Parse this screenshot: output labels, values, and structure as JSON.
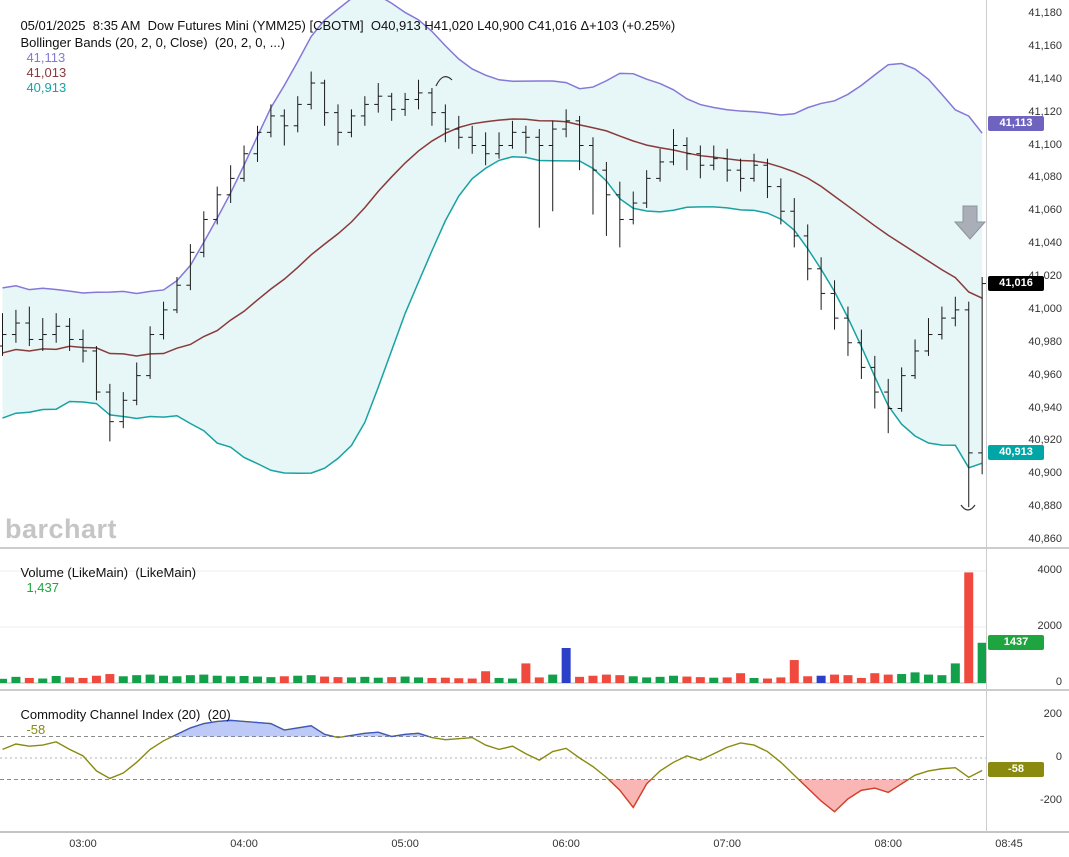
{
  "title": "Dow Futures Mini (YMM25) [CBOTM]",
  "header": {
    "line1": "05/01/2025  8:35 AM  Dow Futures Mini (YMM25) [CBOTM]  O40,913 H41,020 L40,900 C41,016 Δ+103 (+0.25%)",
    "bollinger_label": "Bollinger Bands (20, 2, 0, Close)  (20, 2, 0, ...)",
    "bollinger_upper": "41,113",
    "bollinger_middle": "41,013",
    "bollinger_lower": "40,913"
  },
  "volume_pane": {
    "label": "Volume (LikeMain)  (LikeMain)",
    "value": "1,437"
  },
  "cci_pane": {
    "label": "Commodity Channel Index (20)  (20)",
    "value": "-58"
  },
  "watermark": "barchart",
  "badges": {
    "bb_upper": "41,113",
    "last_price": "41,016",
    "bb_lower": "40,913",
    "volume": "1437",
    "cci": "-58"
  },
  "axes": {
    "price_ticks": [
      "41,180",
      "41,160",
      "41,140",
      "41,120",
      "41,100",
      "41,080",
      "41,060",
      "41,040",
      "41,020",
      "41,000",
      "40,980",
      "40,960",
      "40,940",
      "40,920",
      "40,900",
      "40,880",
      "40,860"
    ],
    "volume_ticks": [
      "4000",
      "2000",
      "0"
    ],
    "cci_ticks": [
      "200",
      "0",
      "-200"
    ],
    "time_ticks": [
      "03:00",
      "04:00",
      "05:00",
      "06:00",
      "07:00",
      "08:00",
      "08:45"
    ]
  },
  "colors": {
    "background": "#ffffff",
    "bar": "#1a1a1a",
    "bb_upper": "#8478d8",
    "bb_middle": "#8a3a3a",
    "bb_lower": "#18a2a2",
    "bb_fill": "rgba(24,162,162,0.10)",
    "volume_up": "#12a04a",
    "volume_down": "#f04a3e",
    "volume_special": "#2b3fc8",
    "cci_line": "#8a8a10",
    "cci_fill_high": "rgba(90,120,235,0.40)",
    "cci_fill_low": "rgba(245,90,90,0.45)",
    "cci_edge_high": "#3a55d0",
    "cci_edge_low": "#e03535",
    "badge_upper_bg": "#6f63c0",
    "badge_last_bg": "#000000",
    "badge_lower_bg": "#00a5a5",
    "badge_volume_bg": "#1fa53f",
    "badge_cci_bg": "#8a8a10",
    "watermark": "#c5c5c5",
    "annotation_arrow": "#a9aeb7"
  },
  "chart_data": {
    "type": "ohlc",
    "symbol": "YMM25",
    "exchange": "CBOTM",
    "interval_minutes": 5,
    "times": [
      "02:30",
      "02:35",
      "02:40",
      "02:45",
      "02:50",
      "02:55",
      "03:00",
      "03:05",
      "03:10",
      "03:15",
      "03:20",
      "03:25",
      "03:30",
      "03:35",
      "03:40",
      "03:45",
      "03:50",
      "03:55",
      "04:00",
      "04:05",
      "04:10",
      "04:15",
      "04:20",
      "04:25",
      "04:30",
      "04:35",
      "04:40",
      "04:45",
      "04:50",
      "04:55",
      "05:00",
      "05:05",
      "05:10",
      "05:15",
      "05:20",
      "05:25",
      "05:30",
      "05:35",
      "05:40",
      "05:45",
      "05:50",
      "05:55",
      "06:00",
      "06:05",
      "06:10",
      "06:15",
      "06:20",
      "06:25",
      "06:30",
      "06:35",
      "06:40",
      "06:45",
      "06:50",
      "06:55",
      "07:00",
      "07:05",
      "07:10",
      "07:15",
      "07:20",
      "07:25",
      "07:30",
      "07:35",
      "07:40",
      "07:45",
      "07:50",
      "07:55",
      "08:00",
      "08:05",
      "08:10",
      "08:15",
      "08:20",
      "08:25",
      "08:30",
      "08:35"
    ],
    "ohlc": [
      [
        40978,
        40998,
        40972,
        40985
      ],
      [
        40985,
        41000,
        40980,
        40992
      ],
      [
        40992,
        41002,
        40978,
        40982
      ],
      [
        40982,
        40995,
        40975,
        40985
      ],
      [
        40985,
        40998,
        40980,
        40990
      ],
      [
        40990,
        40995,
        40975,
        40982
      ],
      [
        40982,
        40988,
        40968,
        40975
      ],
      [
        40975,
        40978,
        40945,
        40950
      ],
      [
        40950,
        40955,
        40920,
        40932
      ],
      [
        40932,
        40950,
        40928,
        40945
      ],
      [
        40945,
        40968,
        40942,
        40960
      ],
      [
        40960,
        40990,
        40958,
        40985
      ],
      [
        40985,
        41005,
        40982,
        41000
      ],
      [
        41000,
        41020,
        40998,
        41015
      ],
      [
        41015,
        41040,
        41012,
        41035
      ],
      [
        41035,
        41060,
        41032,
        41055
      ],
      [
        41055,
        41075,
        41052,
        41070
      ],
      [
        41070,
        41088,
        41065,
        41080
      ],
      [
        41080,
        41100,
        41078,
        41095
      ],
      [
        41095,
        41112,
        41090,
        41108
      ],
      [
        41108,
        41125,
        41105,
        41118
      ],
      [
        41118,
        41122,
        41100,
        41112
      ],
      [
        41112,
        41130,
        41108,
        41125
      ],
      [
        41125,
        41145,
        41122,
        41138
      ],
      [
        41138,
        41140,
        41112,
        41120
      ],
      [
        41120,
        41125,
        41100,
        41108
      ],
      [
        41108,
        41122,
        41105,
        41118
      ],
      [
        41118,
        41130,
        41112,
        41125
      ],
      [
        41125,
        41138,
        41120,
        41130
      ],
      [
        41130,
        41132,
        41115,
        41122
      ],
      [
        41122,
        41132,
        41118,
        41128
      ],
      [
        41128,
        41140,
        41122,
        41132
      ],
      [
        41132,
        41135,
        41112,
        41120
      ],
      [
        41120,
        41125,
        41102,
        41110
      ],
      [
        41110,
        41118,
        41098,
        41105
      ],
      [
        41105,
        41112,
        41095,
        41100
      ],
      [
        41100,
        41108,
        41088,
        41095
      ],
      [
        41095,
        41108,
        41092,
        41100
      ],
      [
        41100,
        41115,
        41098,
        41108
      ],
      [
        41108,
        41112,
        41095,
        41105
      ],
      [
        41105,
        41110,
        41050,
        41100
      ],
      [
        41100,
        41115,
        41060,
        41110
      ],
      [
        41110,
        41122,
        41105,
        41115
      ],
      [
        41115,
        41118,
        41085,
        41100
      ],
      [
        41100,
        41105,
        41058,
        41085
      ],
      [
        41085,
        41090,
        41045,
        41070
      ],
      [
        41070,
        41078,
        41038,
        41055
      ],
      [
        41055,
        41072,
        41052,
        41065
      ],
      [
        41065,
        41085,
        41062,
        41080
      ],
      [
        41080,
        41098,
        41078,
        41090
      ],
      [
        41090,
        41110,
        41088,
        41100
      ],
      [
        41100,
        41105,
        41085,
        41095
      ],
      [
        41095,
        41100,
        41080,
        41088
      ],
      [
        41088,
        41100,
        41085,
        41092
      ],
      [
        41092,
        41098,
        41078,
        41085
      ],
      [
        41085,
        41092,
        41072,
        41080
      ],
      [
        41080,
        41095,
        41078,
        41088
      ],
      [
        41088,
        41092,
        41068,
        41075
      ],
      [
        41075,
        41080,
        41052,
        41060
      ],
      [
        41060,
        41068,
        41038,
        41045
      ],
      [
        41045,
        41052,
        41018,
        41025
      ],
      [
        41025,
        41032,
        41000,
        41010
      ],
      [
        41010,
        41018,
        40988,
        40995
      ],
      [
        40995,
        41002,
        40972,
        40980
      ],
      [
        40980,
        40988,
        40958,
        40965
      ],
      [
        40965,
        40972,
        40940,
        40950
      ],
      [
        40950,
        40958,
        40925,
        40940
      ],
      [
        40940,
        40965,
        40938,
        40960
      ],
      [
        40960,
        40982,
        40958,
        40975
      ],
      [
        40975,
        40995,
        40972,
        40985
      ],
      [
        40985,
        41002,
        40982,
        40995
      ],
      [
        40995,
        41008,
        40990,
        41000
      ],
      [
        41000,
        41005,
        40880,
        40913
      ],
      [
        40913,
        41020,
        40900,
        41016
      ]
    ],
    "volume": [
      150,
      220,
      180,
      160,
      250,
      200,
      180,
      260,
      320,
      240,
      280,
      300,
      260,
      240,
      280,
      300,
      260,
      240,
      250,
      230,
      210,
      240,
      260,
      280,
      230,
      210,
      200,
      220,
      190,
      210,
      230,
      200,
      180,
      190,
      170,
      160,
      420,
      180,
      160,
      700,
      200,
      300,
      1250,
      220,
      260,
      300,
      280,
      240,
      200,
      220,
      260,
      230,
      210,
      190,
      200,
      350,
      180,
      160,
      200,
      820,
      240,
      260,
      300,
      280,
      180,
      350,
      300,
      320,
      380,
      300,
      280,
      700,
      3950,
      1437
    ],
    "volume_special_indices": [
      42,
      61
    ],
    "cci": [
      40,
      65,
      55,
      60,
      75,
      40,
      10,
      -60,
      -95,
      -70,
      -20,
      40,
      80,
      110,
      140,
      160,
      170,
      175,
      170,
      165,
      160,
      130,
      140,
      150,
      110,
      95,
      105,
      115,
      120,
      100,
      110,
      115,
      95,
      85,
      90,
      95,
      60,
      40,
      55,
      20,
      -10,
      30,
      45,
      0,
      -40,
      -90,
      -150,
      -230,
      -120,
      -60,
      -20,
      10,
      -10,
      20,
      50,
      70,
      60,
      30,
      -20,
      -80,
      -140,
      -200,
      -250,
      -190,
      -150,
      -140,
      -160,
      -120,
      -80,
      -60,
      -50,
      -45,
      -90,
      -58
    ],
    "bollinger": {
      "period": 20,
      "stddev_mult": 2,
      "seed_closes": [
        40950,
        41000,
        40960,
        40995,
        40945,
        40990,
        40955,
        41000,
        40950,
        40985,
        40960,
        40995,
        40950,
        40990,
        40958,
        40998,
        40952,
        40988,
        40970
      ]
    },
    "price_axis": {
      "min": 40860,
      "max": 41180,
      "step": 20
    },
    "volume_axis": {
      "min": 0,
      "max": 4300
    },
    "cci_axis": {
      "min": -310,
      "max": 310,
      "thresholds": [
        100,
        0,
        -100
      ]
    },
    "last_price": 41016
  }
}
